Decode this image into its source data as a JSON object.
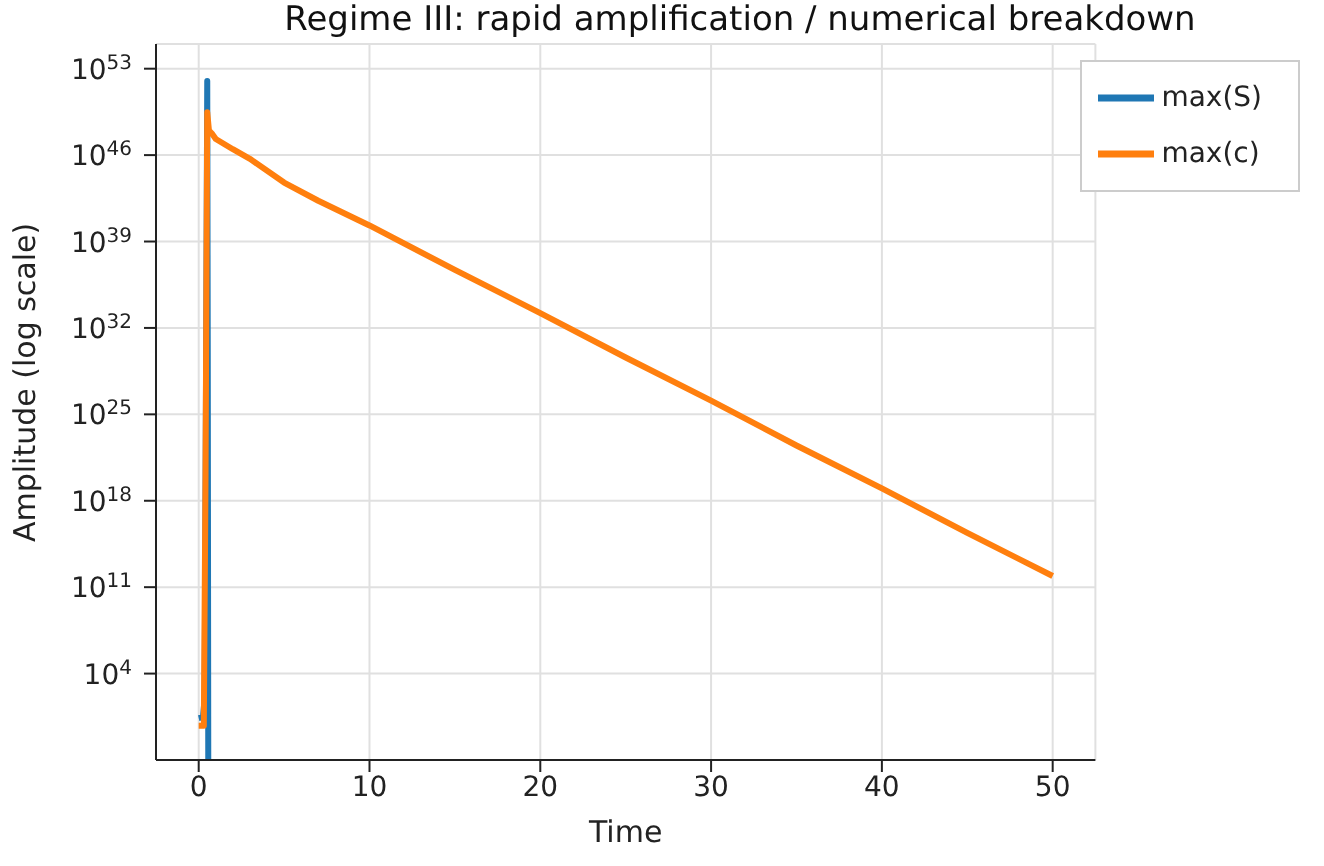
{
  "chart_data": {
    "type": "line",
    "title": "Regime III: rapid amplification / numerical breakdown",
    "xlabel": "Time",
    "ylabel": "Amplitude (log scale)",
    "log": "y",
    "grid": true,
    "legend": "top right",
    "line_style": "solid",
    "marker": "none",
    "xlim": [
      -2.5,
      52.5
    ],
    "xticks": [
      0,
      10,
      20,
      30,
      40,
      50
    ],
    "ylim": [
      0.001,
      1e+55
    ],
    "yticks": [
      {
        "value": 10000.0,
        "label": "10$^{4}$"
      },
      {
        "value": 100000000000.0,
        "label": "10$^{11}$"
      },
      {
        "value": 1e+18,
        "label": "10$^{18}$"
      },
      {
        "value": 1e+25,
        "label": "10$^{25}$"
      },
      {
        "value": 1e+32,
        "label": "10$^{32}$"
      },
      {
        "value": 1e+39,
        "label": "10$^{39}$"
      },
      {
        "value": 1e+46,
        "label": "10$^{46}$"
      },
      {
        "value": 1e+53,
        "label": "10$^{53}$"
      }
    ],
    "series": [
      {
        "name": "max(S)",
        "color": "#1f77b4",
        "x": [
          0,
          0.25,
          0.35,
          0.42,
          0.5,
          0.53,
          0.56
        ],
        "values": [
          2.5,
          3,
          100,
          1e+25,
          1e+52,
          1e+30,
          0.001
        ]
      },
      {
        "name": "max(c)",
        "color": "#ff7f0e",
        "x": [
          0,
          0.3,
          0.4,
          0.5,
          0.6,
          0.8,
          1,
          2,
          3,
          5,
          7,
          10,
          15,
          20,
          25,
          30,
          35,
          40,
          45,
          50
        ],
        "values": [
          0.6,
          0.6,
          1e+20,
          3e+49,
          1e+48,
          5e+47,
          2e+47,
          3e+46,
          5e+45,
          6e+43,
          2e+42,
          2e+40,
          5e+36,
          1.6e+33,
          4e+29,
          1.3e+26,
          3e+22,
          1e+19,
          2500000000000000.0,
          800000000000.0
        ]
      }
    ]
  }
}
